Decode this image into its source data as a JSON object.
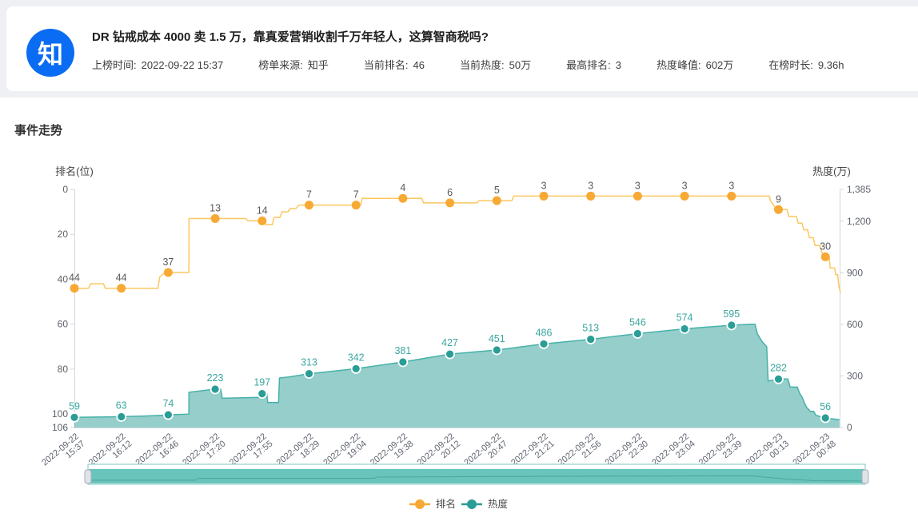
{
  "header": {
    "logo_text": "知",
    "logo_color": "#0a6cf2",
    "title": "DR 钻戒成本 4000 卖 1.5 万，靠真爱营销收割千万年轻人，这算智商税吗?",
    "meta": [
      {
        "label": "上榜时间:",
        "value": "2022-09-22 15:37"
      },
      {
        "label": "榜单来源:",
        "value": "知乎"
      },
      {
        "label": "当前排名:",
        "value": "46"
      },
      {
        "label": "当前热度:",
        "value": "50万"
      },
      {
        "label": "最高排名:",
        "value": "3"
      },
      {
        "label": "热度峰值:",
        "value": "602万"
      },
      {
        "label": "在榜时长:",
        "value": "9.36h"
      }
    ]
  },
  "section": {
    "title": "事件走势"
  },
  "chart_data": {
    "type": "line",
    "title": "事件走势",
    "legend_position": "bottom",
    "grid": false,
    "left_axis": {
      "name": "排名(位)",
      "inverted": true,
      "min": 0,
      "max": 106,
      "ticks": [
        0,
        20,
        40,
        60,
        80,
        100,
        106
      ],
      "tick_labels": [
        "0",
        "20",
        "40",
        "60",
        "80",
        "100",
        "106"
      ]
    },
    "right_axis": {
      "name": "热度(万)",
      "min": 0,
      "max": 1385,
      "ticks": [
        0,
        300,
        600,
        900,
        1200,
        1385
      ],
      "tick_labels": [
        "0",
        "300",
        "600",
        "900",
        "1,200",
        "1,385"
      ]
    },
    "categories_date": [
      "2022-09-22",
      "2022-09-22",
      "2022-09-22",
      "2022-09-22",
      "2022-09-22",
      "2022-09-22",
      "2022-09-22",
      "2022-09-22",
      "2022-09-22",
      "2022-09-22",
      "2022-09-22",
      "2022-09-22",
      "2022-09-22",
      "2022-09-22",
      "2022-09-22",
      "2022-09-23",
      "2022-09-23"
    ],
    "categories_time": [
      "15:37",
      "16:12",
      "16:46",
      "17:20",
      "17:55",
      "18:29",
      "19:04",
      "19:38",
      "20:12",
      "20:47",
      "21:21",
      "21:56",
      "22:30",
      "23:04",
      "23:39",
      "00:13",
      "00:48"
    ],
    "series": [
      {
        "name": "排名",
        "axis": "left",
        "type": "line",
        "line_color": "#fcc760",
        "point_color": "#f7a935",
        "label_color": "#595959",
        "values": [
          44,
          44,
          37,
          13,
          14,
          7,
          7,
          4,
          6,
          5,
          3,
          3,
          3,
          3,
          3,
          9,
          30
        ],
        "fine_points": [
          [
            0,
            44
          ],
          [
            0.3,
            44
          ],
          [
            0.35,
            42
          ],
          [
            0.62,
            42
          ],
          [
            0.66,
            44
          ],
          [
            1,
            44
          ],
          [
            1.78,
            44
          ],
          [
            1.82,
            39
          ],
          [
            1.9,
            37.5
          ],
          [
            2,
            37
          ],
          [
            2.44,
            37
          ],
          [
            2.442,
            13
          ],
          [
            3,
            13
          ],
          [
            3.65,
            13
          ],
          [
            3.7,
            14
          ],
          [
            4,
            14
          ],
          [
            4.05,
            14
          ],
          [
            4.08,
            15.7
          ],
          [
            4.22,
            15.7
          ],
          [
            4.25,
            12.5
          ],
          [
            4.38,
            12.5
          ],
          [
            4.42,
            10
          ],
          [
            4.55,
            10
          ],
          [
            4.6,
            8.5
          ],
          [
            4.72,
            8.5
          ],
          [
            4.78,
            7
          ],
          [
            5,
            7
          ],
          [
            6,
            7
          ],
          [
            6.1,
            7
          ],
          [
            6.13,
            4
          ],
          [
            7,
            4
          ],
          [
            7.4,
            4
          ],
          [
            7.44,
            6
          ],
          [
            8,
            6
          ],
          [
            8.58,
            6
          ],
          [
            8.62,
            5
          ],
          [
            9,
            5
          ],
          [
            9.32,
            5
          ],
          [
            9.36,
            3
          ],
          [
            10,
            3
          ],
          [
            11,
            3
          ],
          [
            12,
            3
          ],
          [
            13,
            3
          ],
          [
            14,
            3
          ],
          [
            14.8,
            3
          ],
          [
            14.84,
            5.5
          ],
          [
            14.93,
            8
          ],
          [
            15,
            9
          ],
          [
            15.18,
            9
          ],
          [
            15.22,
            12
          ],
          [
            15.38,
            12
          ],
          [
            15.42,
            15
          ],
          [
            15.5,
            15
          ],
          [
            15.54,
            18
          ],
          [
            15.62,
            18
          ],
          [
            15.66,
            21.5
          ],
          [
            15.74,
            21.5
          ],
          [
            15.78,
            25
          ],
          [
            15.88,
            25
          ],
          [
            15.92,
            28
          ],
          [
            16,
            30
          ],
          [
            16.08,
            30
          ],
          [
            16.1,
            35
          ],
          [
            16.2,
            35
          ],
          [
            16.22,
            38
          ],
          [
            16.26,
            38
          ],
          [
            16.28,
            42
          ],
          [
            16.3,
            44
          ],
          [
            16.32,
            46
          ]
        ]
      },
      {
        "name": "热度",
        "axis": "right",
        "type": "area",
        "line_color": "#46b2a8",
        "point_color": "#2a9d96",
        "area_color": "rgba(43,158,151,0.5)",
        "label_color": "#3aa79f",
        "values": [
          59,
          63,
          74,
          223,
          197,
          313,
          342,
          381,
          427,
          451,
          486,
          513,
          546,
          574,
          595,
          282,
          56
        ],
        "fine_points": [
          [
            0,
            59
          ],
          [
            0.5,
            61
          ],
          [
            1,
            63
          ],
          [
            1.5,
            67
          ],
          [
            1.95,
            72
          ],
          [
            2,
            74
          ],
          [
            2.44,
            78
          ],
          [
            2.442,
            205
          ],
          [
            3,
            223
          ],
          [
            3.12,
            223
          ],
          [
            3.15,
            170
          ],
          [
            3.95,
            175
          ],
          [
            4,
            197
          ],
          [
            4.1,
            197
          ],
          [
            4.12,
            145
          ],
          [
            4.35,
            145
          ],
          [
            4.37,
            288
          ],
          [
            4.6,
            295
          ],
          [
            5,
            313
          ],
          [
            6,
            342
          ],
          [
            7,
            381
          ],
          [
            8,
            427
          ],
          [
            9,
            451
          ],
          [
            10,
            486
          ],
          [
            11,
            513
          ],
          [
            12,
            546
          ],
          [
            13,
            574
          ],
          [
            14,
            595
          ],
          [
            14.4,
            601
          ],
          [
            14.5,
            601
          ],
          [
            14.55,
            545
          ],
          [
            14.65,
            500
          ],
          [
            14.75,
            470
          ],
          [
            14.78,
            270
          ],
          [
            15,
            282
          ],
          [
            15.2,
            282
          ],
          [
            15.25,
            235
          ],
          [
            15.4,
            235
          ],
          [
            15.45,
            200
          ],
          [
            15.5,
            178
          ],
          [
            15.55,
            145
          ],
          [
            15.6,
            117
          ],
          [
            15.68,
            94
          ],
          [
            15.75,
            94
          ],
          [
            15.8,
            70
          ],
          [
            16,
            56
          ],
          [
            16.3,
            45
          ]
        ]
      }
    ],
    "legend": [
      {
        "label": "排名",
        "color": "#f7a935"
      },
      {
        "label": "热度",
        "color": "#2a9d96"
      }
    ],
    "datazoom": {
      "present": true,
      "bar_color": "#69c4bb",
      "border_color": "#7fc8c0"
    }
  }
}
